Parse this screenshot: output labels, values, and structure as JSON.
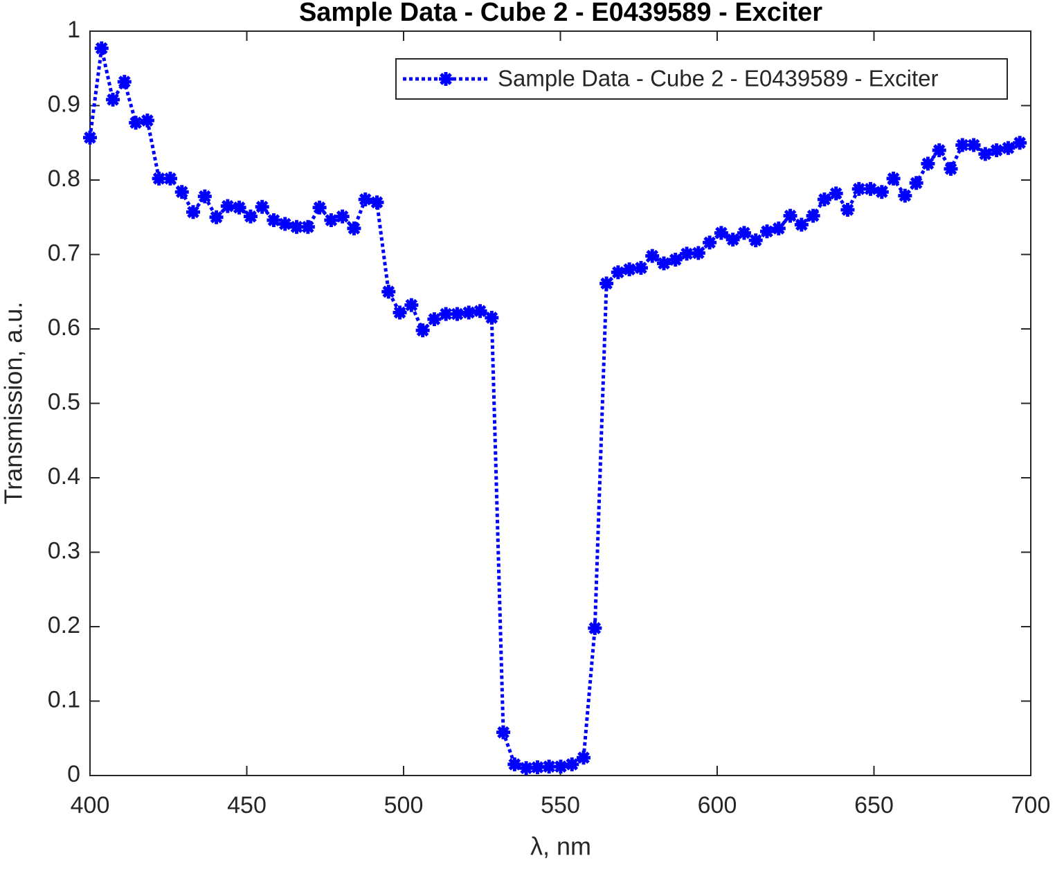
{
  "chart_data": {
    "type": "line",
    "title": "Sample Data - Cube 2 - E0439589 - Exciter",
    "xlabel": "λ, nm",
    "ylabel": "Transmission, a.u.",
    "xlim": [
      400,
      700
    ],
    "ylim": [
      0,
      1
    ],
    "xticks": [
      400,
      450,
      500,
      550,
      600,
      650,
      700
    ],
    "yticks": [
      0,
      0.1,
      0.2,
      0.3,
      0.4,
      0.5,
      0.6,
      0.7,
      0.8,
      0.9,
      1
    ],
    "grid": false,
    "legend": "northeast",
    "x": [
      400.0,
      403.7,
      407.3,
      411.0,
      414.6,
      418.3,
      422.0,
      425.6,
      429.3,
      432.9,
      436.6,
      440.3,
      443.9,
      447.6,
      451.2,
      454.9,
      458.6,
      462.2,
      465.9,
      469.5,
      473.2,
      476.9,
      480.5,
      484.2,
      487.8,
      491.5,
      495.2,
      498.8,
      502.5,
      506.1,
      509.8,
      513.5,
      517.1,
      520.8,
      524.4,
      528.1,
      531.8,
      535.4,
      539.1,
      542.7,
      546.4,
      550.1,
      553.7,
      557.4,
      561.0,
      564.7,
      568.4,
      572.0,
      575.7,
      579.3,
      583.0,
      586.7,
      590.3,
      594.0,
      597.6,
      601.3,
      605.0,
      608.6,
      612.3,
      615.9,
      619.6,
      623.3,
      626.9,
      630.6,
      634.2,
      637.9,
      641.6,
      645.2,
      648.9,
      652.5,
      656.2,
      659.9,
      663.5,
      667.2,
      670.8,
      674.5,
      678.2,
      681.8,
      685.5,
      689.1,
      692.8,
      696.5
    ],
    "series": [
      {
        "name": "Sample Data - Cube 2 - E0439589 - Exciter",
        "color": "#0000ff",
        "values": [
          0.857,
          0.977,
          0.908,
          0.932,
          0.877,
          0.88,
          0.802,
          0.802,
          0.784,
          0.757,
          0.778,
          0.75,
          0.765,
          0.763,
          0.751,
          0.764,
          0.746,
          0.741,
          0.737,
          0.737,
          0.763,
          0.746,
          0.751,
          0.735,
          0.774,
          0.77,
          0.65,
          0.622,
          0.632,
          0.598,
          0.613,
          0.62,
          0.62,
          0.622,
          0.624,
          0.615,
          0.058,
          0.015,
          0.01,
          0.011,
          0.012,
          0.012,
          0.015,
          0.024,
          0.198,
          0.661,
          0.676,
          0.68,
          0.682,
          0.698,
          0.688,
          0.693,
          0.701,
          0.702,
          0.716,
          0.729,
          0.72,
          0.729,
          0.719,
          0.731,
          0.735,
          0.752,
          0.74,
          0.752,
          0.774,
          0.782,
          0.76,
          0.788,
          0.788,
          0.784,
          0.802,
          0.779,
          0.796,
          0.822,
          0.84,
          0.815,
          0.847,
          0.847,
          0.835,
          0.84,
          0.843,
          0.85
        ]
      }
    ]
  }
}
